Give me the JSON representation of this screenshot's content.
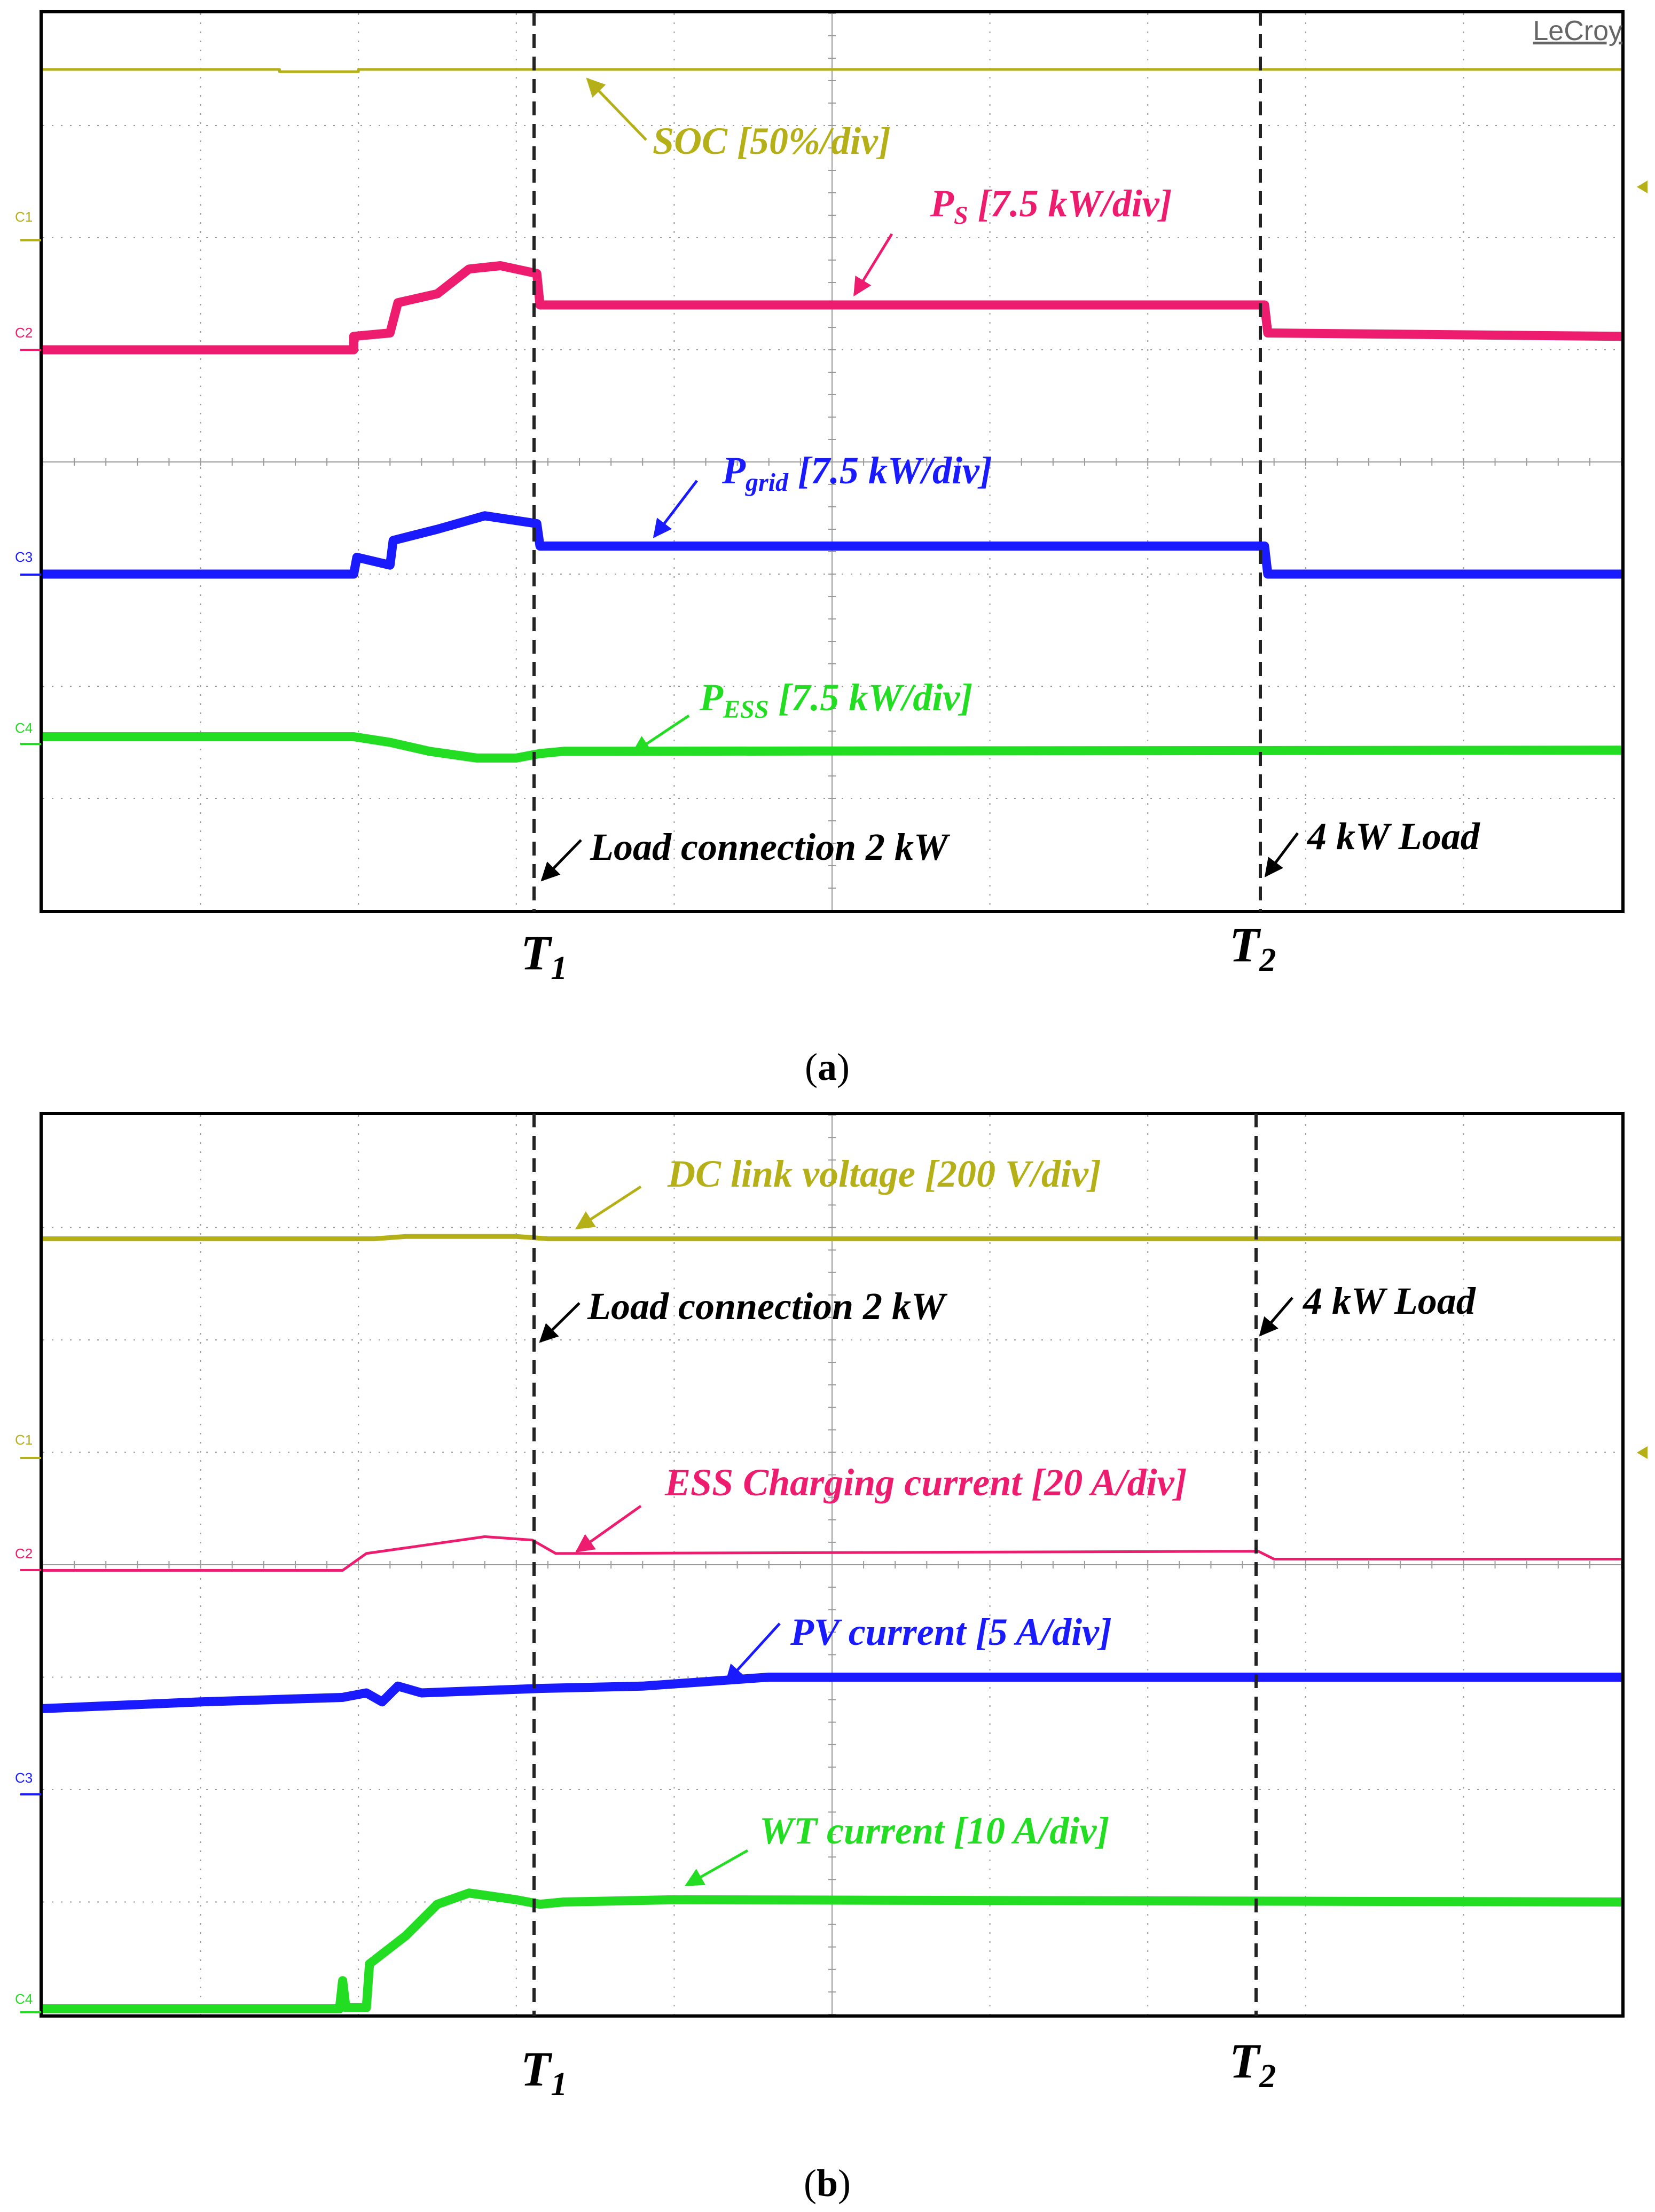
{
  "figure": {
    "panels": [
      {
        "id": "a",
        "caption_open": "(",
        "caption_letter": "a",
        "caption_close": ")",
        "brand": "LeCroy",
        "markers": {
          "t1": "T",
          "t1_sub": "1",
          "t2": "T",
          "t2_sub": "2"
        },
        "annotations": [
          {
            "key": "soc",
            "text": "SOC [50%/div]",
            "color": "#b5b017"
          },
          {
            "key": "ps",
            "base": "P",
            "sub": "S",
            "rest": " [7.5 kW/div]",
            "color": "#ee1c6e"
          },
          {
            "key": "pgrid",
            "base": "P",
            "sub": "grid",
            "rest": " [7.5 kW/div]",
            "color": "#1a1aff"
          },
          {
            "key": "pess",
            "base": "P",
            "sub": "ESS",
            "rest": " [7.5 kW/div]",
            "color": "#22dd22"
          },
          {
            "key": "load1",
            "text": "Load connection 2 kW",
            "color": "#000000"
          },
          {
            "key": "load2",
            "text": "4 kW Load",
            "color": "#000000"
          }
        ],
        "channel_labels": [
          "C1",
          "C2",
          "C3",
          "C4"
        ]
      },
      {
        "id": "b",
        "caption_open": "(",
        "caption_letter": "b",
        "caption_close": ")",
        "markers": {
          "t1": "T",
          "t1_sub": "1",
          "t2": "T",
          "t2_sub": "2"
        },
        "annotations": [
          {
            "key": "dc",
            "text": "DC link voltage [200 V/div]",
            "color": "#b5b017"
          },
          {
            "key": "load1",
            "text": "Load connection 2 kW",
            "color": "#000000"
          },
          {
            "key": "load2",
            "text": "4 kW Load",
            "color": "#000000"
          },
          {
            "key": "ess",
            "text": "ESS Charging current [20 A/div]",
            "color": "#ee1c6e"
          },
          {
            "key": "pv",
            "text": "PV current [5 A/div]",
            "color": "#1a1aff"
          },
          {
            "key": "wt",
            "text": "WT current [10 A/div]",
            "color": "#22dd22"
          }
        ],
        "channel_labels": [
          "C1",
          "C2",
          "C3",
          "C4"
        ]
      }
    ]
  },
  "chart_data": [
    {
      "type": "line",
      "title": "(a)",
      "xlabel": "",
      "ylabel": "",
      "x_unit": "time divisions",
      "xlim": [
        0,
        10
      ],
      "ylim": [
        0,
        8
      ],
      "grid": true,
      "events": [
        {
          "name": "T1",
          "x": 3.15,
          "label": "Load connection 2 kW"
        },
        {
          "name": "T2",
          "x": 7.75,
          "label": "4 kW Load"
        }
      ],
      "series": [
        {
          "name": "SOC [50%/div]",
          "color": "#b5b017",
          "stroke": "thin",
          "points": [
            [
              0,
              7.5
            ],
            [
              1.5,
              7.5
            ],
            [
              1.5,
              7.48
            ],
            [
              2.0,
              7.48
            ],
            [
              2.0,
              7.5
            ],
            [
              10,
              7.5
            ]
          ]
        },
        {
          "name": "P_S [7.5 kW/div]",
          "color": "#ee1c6e",
          "stroke": "thick",
          "points": [
            [
              0,
              5.0
            ],
            [
              1.97,
              5.0
            ],
            [
              1.97,
              5.12
            ],
            [
              2.2,
              5.15
            ],
            [
              2.25,
              5.42
            ],
            [
              2.5,
              5.5
            ],
            [
              2.7,
              5.72
            ],
            [
              2.9,
              5.75
            ],
            [
              3.13,
              5.68
            ],
            [
              3.15,
              5.4
            ],
            [
              7.74,
              5.4
            ],
            [
              7.76,
              5.15
            ],
            [
              10,
              5.12
            ]
          ]
        },
        {
          "name": "P_grid [7.5 kW/div]",
          "color": "#1a1aff",
          "stroke": "thick",
          "points": [
            [
              0,
              3.0
            ],
            [
              1.97,
              3.0
            ],
            [
              1.99,
              3.15
            ],
            [
              2.2,
              3.08
            ],
            [
              2.22,
              3.3
            ],
            [
              2.5,
              3.4
            ],
            [
              2.8,
              3.52
            ],
            [
              3.13,
              3.45
            ],
            [
              3.15,
              3.25
            ],
            [
              7.74,
              3.25
            ],
            [
              7.76,
              3.0
            ],
            [
              10,
              3.0
            ]
          ]
        },
        {
          "name": "P_ESS [7.5 kW/div]",
          "color": "#22dd22",
          "stroke": "thick",
          "points": [
            [
              0,
              1.55
            ],
            [
              1.97,
              1.55
            ],
            [
              2.2,
              1.5
            ],
            [
              2.45,
              1.42
            ],
            [
              2.75,
              1.36
            ],
            [
              3.0,
              1.36
            ],
            [
              3.15,
              1.4
            ],
            [
              3.3,
              1.42
            ],
            [
              10,
              1.43
            ]
          ]
        }
      ]
    },
    {
      "type": "line",
      "title": "(b)",
      "xlabel": "",
      "ylabel": "",
      "x_unit": "time divisions",
      "xlim": [
        0,
        10
      ],
      "ylim": [
        0,
        8
      ],
      "grid": true,
      "events": [
        {
          "name": "T1",
          "x": 3.15,
          "label": "Load connection 2 kW"
        },
        {
          "name": "T2",
          "x": 7.75,
          "label": "4 kW Load"
        }
      ],
      "series": [
        {
          "name": "DC link voltage [200 V/div]",
          "color": "#b5b017",
          "stroke": "medium",
          "points": [
            [
              0,
              6.9
            ],
            [
              2.1,
              6.9
            ],
            [
              2.3,
              6.92
            ],
            [
              3.0,
              6.92
            ],
            [
              3.2,
              6.9
            ],
            [
              10,
              6.9
            ]
          ]
        },
        {
          "name": "ESS Charging current [20 A/div]",
          "color": "#ee1c6e",
          "stroke": "thin",
          "points": [
            [
              0,
              3.95
            ],
            [
              1.9,
              3.95
            ],
            [
              2.05,
              4.1
            ],
            [
              2.4,
              4.17
            ],
            [
              2.8,
              4.25
            ],
            [
              3.1,
              4.22
            ],
            [
              3.25,
              4.1
            ],
            [
              7.7,
              4.12
            ],
            [
              7.8,
              4.05
            ],
            [
              10,
              4.05
            ]
          ]
        },
        {
          "name": "PV current [5 A/div]",
          "color": "#1a1aff",
          "stroke": "thick",
          "points": [
            [
              0,
              2.72
            ],
            [
              1.0,
              2.78
            ],
            [
              1.9,
              2.82
            ],
            [
              2.05,
              2.86
            ],
            [
              2.15,
              2.78
            ],
            [
              2.25,
              2.92
            ],
            [
              2.4,
              2.86
            ],
            [
              3.15,
              2.9
            ],
            [
              3.8,
              2.92
            ],
            [
              4.6,
              3.0
            ],
            [
              10,
              3.0
            ]
          ]
        },
        {
          "name": "WT current [10 A/div]",
          "color": "#22dd22",
          "stroke": "thick",
          "points": [
            [
              0,
              0.05
            ],
            [
              1.88,
              0.05
            ],
            [
              1.9,
              0.3
            ],
            [
              1.92,
              0.06
            ],
            [
              2.05,
              0.06
            ],
            [
              2.07,
              0.45
            ],
            [
              2.3,
              0.7
            ],
            [
              2.5,
              0.98
            ],
            [
              2.7,
              1.08
            ],
            [
              3.0,
              1.02
            ],
            [
              3.15,
              0.98
            ],
            [
              3.3,
              1.0
            ],
            [
              4.0,
              1.02
            ],
            [
              10,
              1.0
            ]
          ]
        }
      ]
    }
  ]
}
